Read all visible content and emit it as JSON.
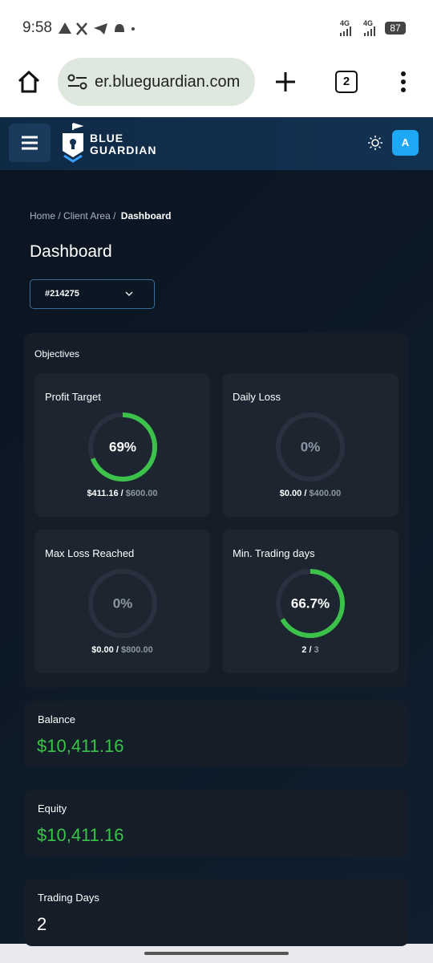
{
  "status_bar": {
    "time": "9:58",
    "network_1": "4G",
    "network_2": "4G",
    "battery": "87"
  },
  "browser": {
    "url": "er.blueguardian.com",
    "tab_count": "2"
  },
  "header": {
    "logo_line_1": "BLUE",
    "logo_line_2": "GUARDIAN",
    "avatar": "A"
  },
  "breadcrumb": {
    "items": [
      "Home",
      "Client Area",
      "Dashboard"
    ],
    "separator": "/"
  },
  "page_title": "Dashboard",
  "account_select": "#214275",
  "objectives": {
    "title": "Objectives",
    "separator": "/",
    "cards": [
      {
        "title": "Profit Target",
        "progress": {
          "value": 69,
          "label": "69%"
        },
        "current": "$411.16",
        "target": "$600.00"
      },
      {
        "title": "Daily Loss",
        "progress": {
          "value": 0,
          "label": "0%"
        },
        "current": "$0.00",
        "target": "$400.00"
      },
      {
        "title": "Max Loss Reached",
        "progress": {
          "value": 0,
          "label": "0%"
        },
        "current": "$0.00",
        "target": "$800.00"
      },
      {
        "title": "Min. Trading days",
        "progress": {
          "value": 66.7,
          "label": "66.7%"
        },
        "current": "2",
        "target": "3"
      }
    ]
  },
  "stats": [
    {
      "label": "Balance",
      "value": "$10,411.16"
    },
    {
      "label": "Equity",
      "value": "$10,411.16"
    },
    {
      "label": "Trading Days",
      "value": "2"
    }
  ]
}
